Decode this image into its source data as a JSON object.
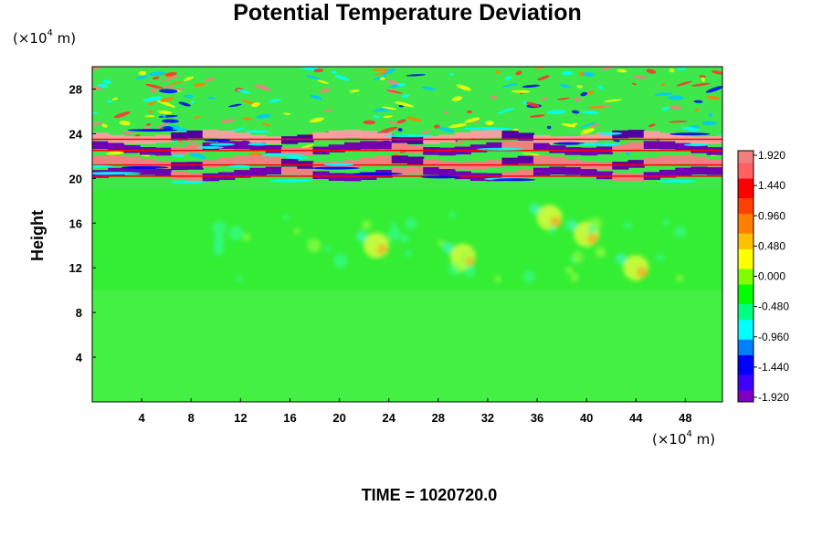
{
  "chart_data": {
    "type": "heatmap",
    "title": "Potential Temperature Deviation",
    "ylabel": "Height",
    "x_unit": "(×10",
    "x_unit_exp": "4",
    "x_unit_suffix": " m)",
    "y_unit": "(×10",
    "y_unit_exp": "4",
    "y_unit_suffix": " m)",
    "xlim": [
      0,
      51
    ],
    "ylim": [
      0,
      30
    ],
    "x_ticks": [
      4,
      8,
      12,
      16,
      20,
      24,
      28,
      32,
      36,
      40,
      44,
      48
    ],
    "y_ticks": [
      4,
      8,
      12,
      16,
      20,
      24,
      28
    ],
    "colorbar": {
      "min": -1.92,
      "max": 1.92,
      "labels": [
        "1.920",
        "1.440",
        "0.960",
        "0.480",
        "0.000",
        "-0.480",
        "-0.960",
        "-1.440",
        "-1.920"
      ],
      "colors": [
        "#f08080",
        "#ff0000",
        "#ff8000",
        "#ffff00",
        "#00ff00",
        "#00ffff",
        "#0000ff",
        "#8000c0"
      ]
    },
    "field_description": {
      "background_value": 0.0,
      "wave_band_y_range": [
        19,
        30
      ],
      "strong_layers_y": [
        20.5,
        21.5,
        22.8,
        24.0
      ],
      "convective_blobs": [
        [
          23,
          14
        ],
        [
          37,
          16.5
        ],
        [
          40,
          15
        ],
        [
          30,
          13
        ],
        [
          44,
          12
        ]
      ]
    },
    "footer": "TIME = 1020720.0"
  }
}
